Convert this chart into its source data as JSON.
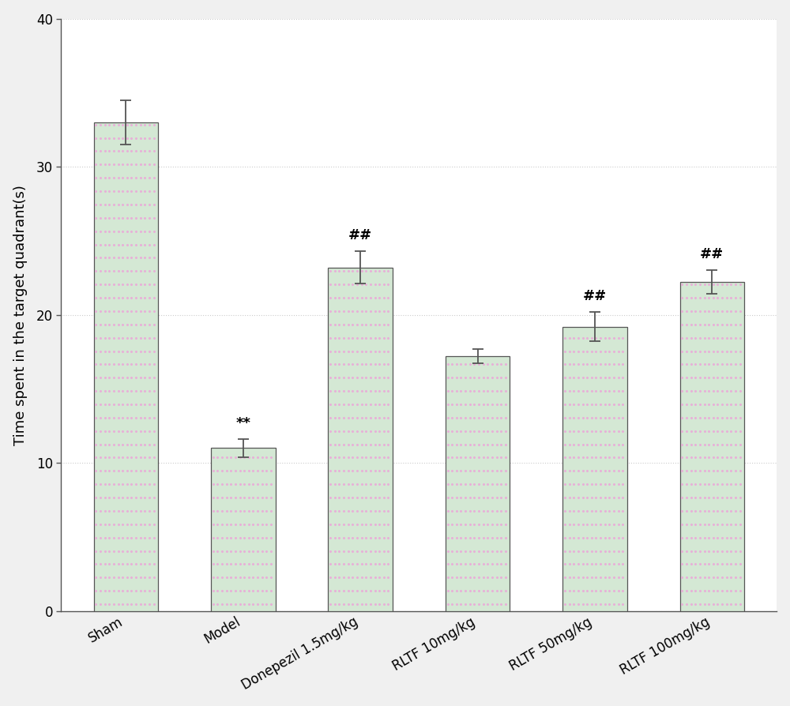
{
  "categories": [
    "Sham",
    "Model",
    "Donepezil 1.5mg/kg",
    "RLTF 10mg/kg",
    "RLTF 50mg/kg",
    "RLTF 100mg/kg"
  ],
  "values": [
    33.0,
    11.0,
    23.2,
    17.2,
    19.2,
    22.2
  ],
  "errors": [
    1.5,
    0.6,
    1.1,
    0.5,
    1.0,
    0.8
  ],
  "annotations": [
    "",
    "**",
    "##",
    "",
    "##",
    "##"
  ],
  "bar_color_face": "#d4e8d4",
  "bar_color_hatch": "#e8b0d8",
  "bar_edge_color": "#555555",
  "bar_width": 0.55,
  "ylabel": "Time spent in the target quadrant(s)",
  "ylim": [
    0,
    40
  ],
  "yticks": [
    0,
    10,
    20,
    30,
    40
  ],
  "grid_color": "#cccccc",
  "grid_style": "dotted",
  "annotation_fontsize": 13,
  "ylabel_fontsize": 13,
  "tick_fontsize": 12,
  "xlabel_rotation": 30,
  "background_color": "#ffffff",
  "fig_background": "#f0f0f0"
}
